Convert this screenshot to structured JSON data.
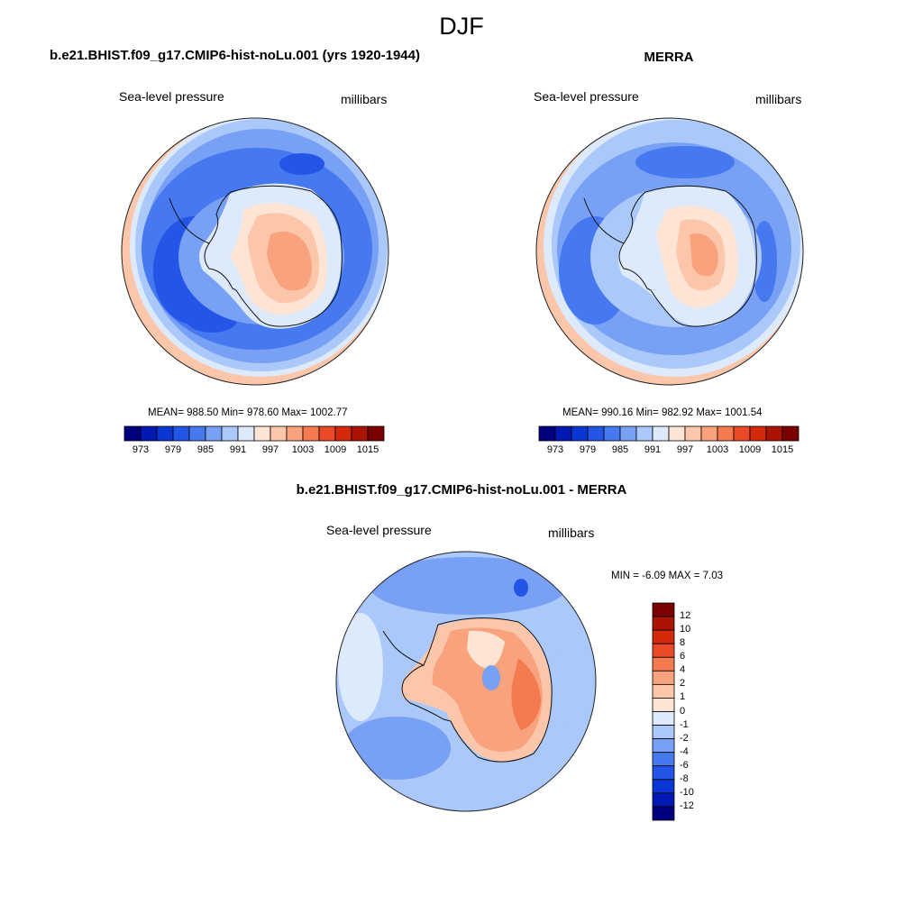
{
  "header": {
    "title": "DJF"
  },
  "panels": [
    {
      "title": "b.e21.BHIST.f09_g17.CMIP6-hist-noLu.001 (yrs 1920-1944)",
      "variable": "Sea-level pressure",
      "units": "millibars",
      "stats": "MEAN= 988.50  Min= 978.60  Max= 1002.77"
    },
    {
      "title": "MERRA",
      "variable": "Sea-level pressure",
      "units": "millibars",
      "stats": "MEAN= 990.16  Min= 982.92  Max= 1001.54"
    },
    {
      "title": "b.e21.BHIST.f09_g17.CMIP6-hist-noLu.001 - MERRA",
      "variable": "Sea-level pressure",
      "units": "millibars",
      "stats": "MIN =  -6.09 MAX =   7.03"
    }
  ],
  "colorbar_abs": {
    "colors": [
      "#00007f",
      "#0019b3",
      "#0a37d4",
      "#2355e6",
      "#4678f0",
      "#78a0f5",
      "#aac8fa",
      "#dceafc",
      "#fde4d4",
      "#fcc6aa",
      "#f9a27e",
      "#f47a50",
      "#eb4a28",
      "#d22a0a",
      "#aa1402",
      "#7a0000"
    ],
    "tick_labels": [
      "973",
      "979",
      "985",
      "991",
      "997",
      "1003",
      "1009",
      "1015"
    ]
  },
  "colorbar_diff": {
    "colors": [
      "#7a0000",
      "#aa1402",
      "#d22a0a",
      "#eb4a28",
      "#f47a50",
      "#f9a27e",
      "#fcc6aa",
      "#fde4d4",
      "#dceafc",
      "#aac8fa",
      "#78a0f5",
      "#4678f0",
      "#2355e6",
      "#0a37d4",
      "#0019b3",
      "#00007f"
    ],
    "tick_labels": [
      "12",
      "10",
      "8",
      "6",
      "4",
      "2",
      "1",
      "0",
      "-1",
      "-2",
      "-4",
      "-6",
      "-8",
      "-10",
      "-12"
    ]
  },
  "chart_data": [
    {
      "type": "heatmap",
      "title": "b.e21.BHIST.f09_g17.CMIP6-hist-noLu.001 (yrs 1920-1944)",
      "variable": "Sea-level pressure",
      "units": "millibars",
      "projection": "south-polar stereographic",
      "mean": 988.5,
      "min": 978.6,
      "max": 1002.77,
      "contour_levels": [
        970,
        973,
        976,
        979,
        982,
        985,
        988,
        991,
        994,
        997,
        1000,
        1003,
        1006,
        1009,
        1012,
        1015,
        1018
      ]
    },
    {
      "type": "heatmap",
      "title": "MERRA",
      "variable": "Sea-level pressure",
      "units": "millibars",
      "projection": "south-polar stereographic",
      "mean": 990.16,
      "min": 982.92,
      "max": 1001.54,
      "contour_levels": [
        970,
        973,
        976,
        979,
        982,
        985,
        988,
        991,
        994,
        997,
        1000,
        1003,
        1006,
        1009,
        1012,
        1015,
        1018
      ]
    },
    {
      "type": "heatmap",
      "title": "b.e21.BHIST.f09_g17.CMIP6-hist-noLu.001 - MERRA",
      "variable": "Sea-level pressure",
      "units": "millibars",
      "projection": "south-polar stereographic",
      "min": -6.09,
      "max": 7.03,
      "contour_levels": [
        -12,
        -10,
        -8,
        -6,
        -4,
        -2,
        -1,
        0,
        1,
        2,
        4,
        6,
        8,
        10,
        12
      ]
    }
  ]
}
